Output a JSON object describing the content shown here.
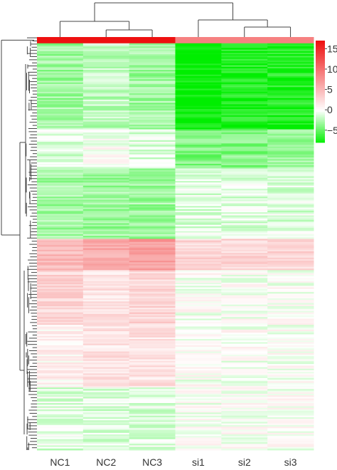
{
  "chart_data": {
    "type": "heatmap",
    "columns": [
      "NC1",
      "NC2",
      "NC3",
      "si1",
      "si2",
      "si3"
    ],
    "color_scale": {
      "min_color": "#00ee00",
      "mid_color": "#ffffff",
      "max_color": "#ee1111",
      "tick_labels": [
        "15",
        "10",
        "5",
        "0",
        "−5"
      ],
      "tick_values": [
        15,
        10,
        5,
        0,
        -5
      ],
      "range": [
        -8,
        17
      ]
    },
    "row_blocks": [
      {
        "rows": 4,
        "values": [
          17,
          17,
          17,
          9,
          9,
          9
        ]
      },
      {
        "rows": 55,
        "values": [
          -3,
          -2,
          -3,
          -8,
          -7,
          -7
        ]
      },
      {
        "rows": 25,
        "values": [
          -1,
          0,
          -1,
          -4,
          -4,
          -3
        ]
      },
      {
        "rows": 45,
        "values": [
          -3,
          -3,
          -3,
          -1,
          -1,
          -1
        ]
      },
      {
        "rows": 20,
        "values": [
          5,
          6,
          7,
          3,
          3,
          3
        ]
      },
      {
        "rows": 35,
        "values": [
          3,
          2,
          3,
          0,
          0,
          0
        ]
      },
      {
        "rows": 40,
        "values": [
          1,
          2,
          2,
          0,
          0,
          0
        ]
      },
      {
        "rows": 40,
        "values": [
          -1,
          -1,
          -1,
          0,
          0,
          0
        ]
      }
    ]
  }
}
